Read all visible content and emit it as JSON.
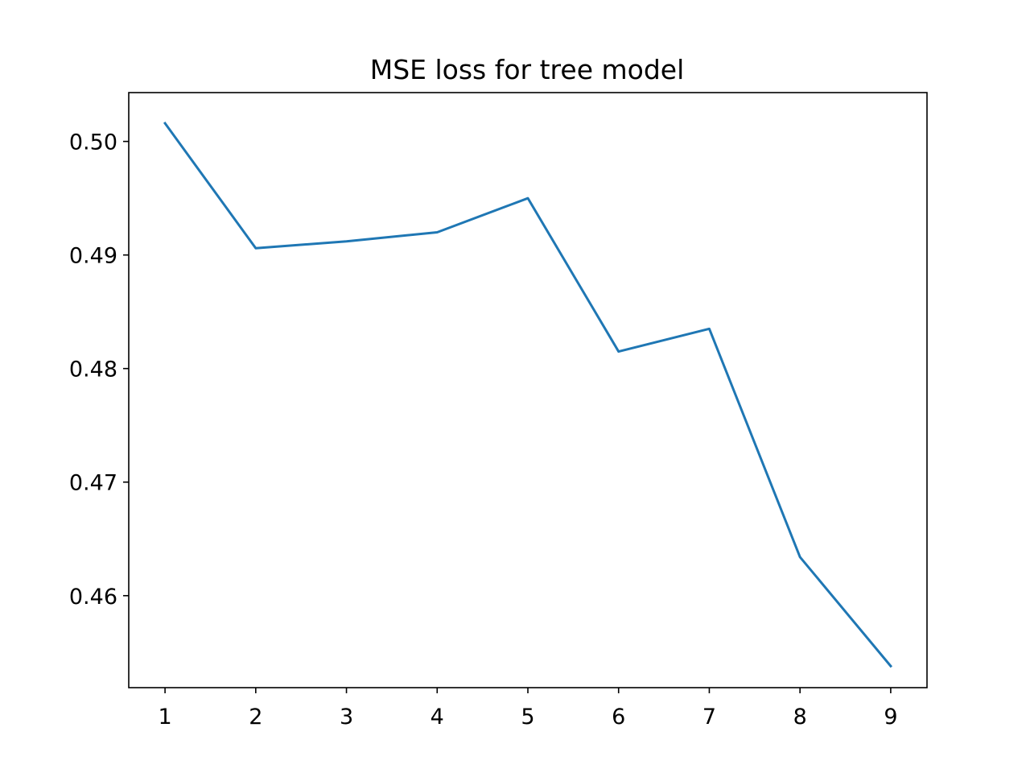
{
  "chart_data": {
    "type": "line",
    "title": "MSE loss for tree model",
    "xlabel": "",
    "ylabel": "",
    "x": [
      1,
      2,
      3,
      4,
      5,
      6,
      7,
      8,
      9
    ],
    "series": [
      {
        "values": [
          0.5016,
          0.4906,
          0.4912,
          0.492,
          0.495,
          0.4815,
          0.4835,
          0.4634,
          0.4538
        ],
        "color": "#1f77b4"
      }
    ],
    "xlim": [
      0.6,
      9.4
    ],
    "ylim": [
      0.4519,
      0.5043
    ],
    "x_ticks": [
      "1",
      "2",
      "3",
      "4",
      "5",
      "6",
      "7",
      "8",
      "9"
    ],
    "y_ticks": [
      "0.46",
      "0.47",
      "0.48",
      "0.49",
      "0.50"
    ],
    "grid": false,
    "legend": "none"
  }
}
